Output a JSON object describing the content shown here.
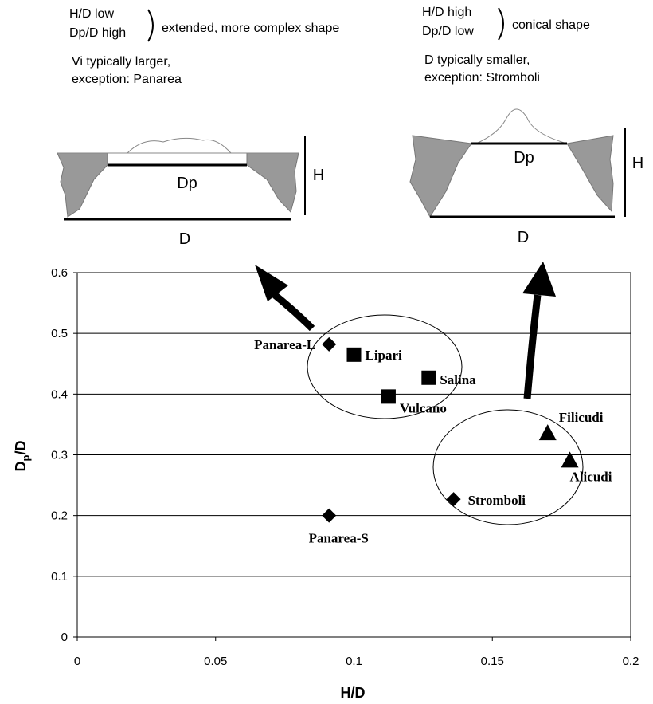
{
  "annotations": {
    "left_cond": [
      "H/D low",
      "Dp/D high"
    ],
    "left_result": "extended, more complex shape",
    "left_note": [
      "Vi typically larger,",
      "exception: Panarea"
    ],
    "right_cond": [
      "H/D high",
      "Dp/D low"
    ],
    "right_result": "conical shape",
    "right_note": [
      "D typically smaller,",
      "exception: Stromboli"
    ]
  },
  "diagrams": {
    "left": {
      "dp": "Dp",
      "h": "H",
      "d": "D"
    },
    "right": {
      "dp": "Dp",
      "h": "H",
      "d": "D"
    }
  },
  "chart_data": {
    "type": "scatter",
    "x_label": "H/D",
    "y_label": [
      "D",
      "p",
      "/D"
    ],
    "xlim": [
      0,
      0.2
    ],
    "xticks": [
      0,
      0.05,
      0.1,
      0.15,
      0.2
    ],
    "ylim": [
      0,
      0.6
    ],
    "yticks": [
      0,
      0.1,
      0.2,
      0.3,
      0.4,
      0.5,
      0.6
    ],
    "grid": true,
    "series": [
      {
        "marker": "diamond",
        "color": "#000000",
        "labels": [
          "Panarea-L",
          "Stromboli",
          "Panarea-S"
        ],
        "x": [
          0.091,
          0.136,
          0.091
        ],
        "values": [
          0.482,
          0.227,
          0.2
        ]
      },
      {
        "marker": "square",
        "color": "#000000",
        "labels": [
          "Lipari",
          "Salina",
          "Vulcano"
        ],
        "x": [
          0.1,
          0.127,
          0.1125
        ],
        "values": [
          0.465,
          0.427,
          0.396
        ]
      },
      {
        "marker": "triangle",
        "color": "#000000",
        "labels": [
          "Filicudi",
          "Alicudi"
        ],
        "x": [
          0.17,
          0.178
        ],
        "values": [
          0.336,
          0.291
        ]
      }
    ]
  }
}
